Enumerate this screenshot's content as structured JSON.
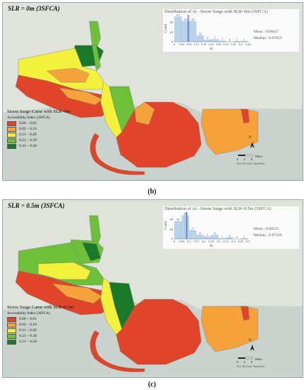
{
  "legend_colors": [
    "#e0452a",
    "#f5a23a",
    "#f2f23c",
    "#6fc039",
    "#1b7a2a"
  ],
  "panels": [
    {
      "id": "b",
      "title": "SLR = 0m (3SFCA)",
      "caption": "(b)",
      "legend_title": "Storm Surge Came with SLR=0m",
      "legend_subtitle": "Accessibility Index (3SFCA)",
      "legend_items": [
        "0.00 – 0.01",
        "0.02 – 0.10",
        "0.11 – 0.20",
        "0.21 – 0.30",
        "0.31 – 0.44"
      ],
      "hist_title": "Distribution of Ai - Storm Surge with SLR=0m (3SFCA)",
      "y_label": "Count",
      "x_label": "Ai",
      "y_ticks": [
        "0",
        "20",
        "40"
      ],
      "x_ticks": [
        "0",
        "0.04",
        "0.09",
        "0.13",
        "0.18",
        "0.22",
        "0.26",
        "0.31",
        "0.35",
        "0.4",
        "0.44"
      ],
      "bar_counts": [
        51,
        42,
        42,
        13,
        4,
        5,
        2,
        0,
        1,
        1
      ],
      "bar_count_labels": [
        "51",
        "42",
        "42",
        "13",
        "4",
        "5",
        "2",
        "0",
        "1",
        "1"
      ],
      "mean_label": "Mean : 0.08457",
      "median_label": "Median : 0.07859",
      "mean_value": 0.08457,
      "median_value": 0.07859,
      "x_max": 0.44,
      "y_max": 55,
      "north": "N",
      "scale_ticks": [
        "0",
        "4",
        "8"
      ],
      "scale_unit": "Miles",
      "credits": "Esri, DeLorme, NaturalVue"
    },
    {
      "id": "c",
      "title": "SLR = 0.5m (3SFCA)",
      "caption": "(c)",
      "legend_title": "Storm Surge Came with SLR=0.5m",
      "legend_subtitle": "Accessibility Index (3SFCA)",
      "legend_items": [
        "0.00 – 0.01",
        "0.02 – 0.10",
        "0.11 – 0.20",
        "0.21 – 0.30",
        "0.31 – 0.50"
      ],
      "hist_title": "Distribution of Ai - Storm Surge with SLR=0.5m (3SFCA)",
      "y_label": "Count",
      "x_label": "Ai",
      "y_ticks": [
        "0",
        "20",
        "40"
      ],
      "x_ticks": [
        "0",
        "0.05",
        "0.1",
        "0.15",
        "0.2",
        "0.25",
        "0.3",
        "0.35",
        "0.4",
        "0.45",
        "0.5"
      ],
      "bar_counts": [
        36,
        48,
        17,
        8,
        5,
        8,
        1,
        3,
        0,
        1
      ],
      "bar_count_labels": [
        "36",
        "48",
        "17",
        "8",
        "5",
        "8",
        "1",
        "3",
        "0",
        "1"
      ],
      "mean_label": "Mean : 0.08525",
      "median_label": "Median : 0.07328",
      "mean_value": 0.08525,
      "median_value": 0.07328,
      "x_max": 0.5,
      "y_max": 55,
      "north": "N",
      "scale_ticks": [
        "0",
        "4",
        "8"
      ],
      "scale_unit": "Miles",
      "credits": "Esri, DeLorme, NaturalVue"
    }
  ]
}
